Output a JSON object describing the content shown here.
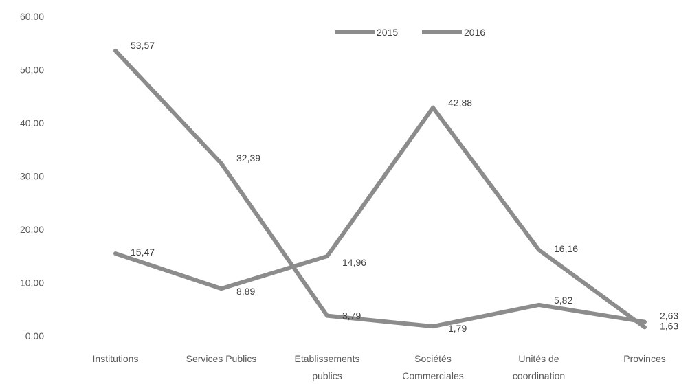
{
  "chart_data": {
    "type": "line",
    "categories": [
      [
        "Institutions"
      ],
      [
        "Services Publics"
      ],
      [
        "Etablissements",
        "publics"
      ],
      [
        "Sociétés",
        "Commerciales"
      ],
      [
        "Unités de",
        "coordination"
      ],
      [
        "Provinces"
      ]
    ],
    "series": [
      {
        "name": "2015",
        "values": [
          53.57,
          32.39,
          3.79,
          1.79,
          5.82,
          2.63
        ],
        "labels": [
          "53,57",
          "32,39",
          "3,79",
          "1,79",
          "5,82",
          "2,63"
        ]
      },
      {
        "name": "2016",
        "values": [
          15.47,
          8.89,
          14.96,
          42.88,
          16.16,
          1.63
        ],
        "labels": [
          "15,47",
          "8,89",
          "14,96",
          "42,88",
          "16,16",
          "1,63"
        ]
      }
    ],
    "ylim": [
      0,
      60
    ],
    "yticks": [
      0,
      10,
      20,
      30,
      40,
      50,
      60
    ],
    "ytick_labels": [
      "0,00",
      "10,00",
      "20,00",
      "30,00",
      "40,00",
      "50,00",
      "60,00"
    ],
    "line_color": "#8c8c8c",
    "grid": false,
    "legend_position": "top-center"
  }
}
